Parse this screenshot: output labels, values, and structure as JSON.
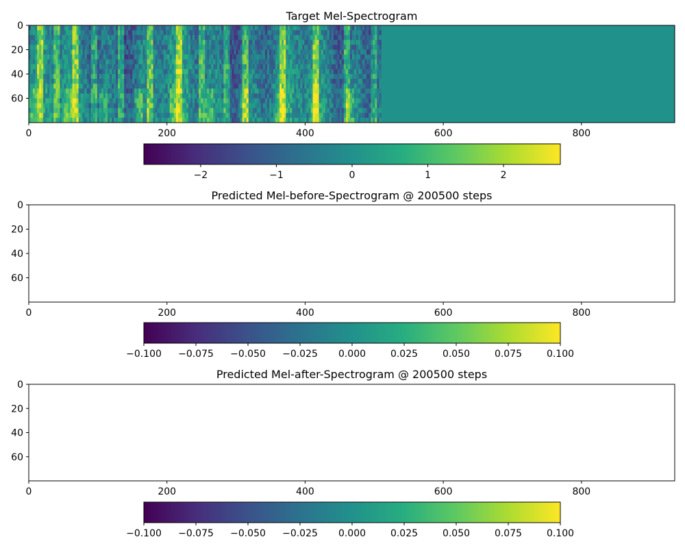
{
  "chart_data": [
    {
      "type": "heatmap",
      "title": "Target Mel-Spectrogram",
      "xlabel": "",
      "ylabel": "",
      "xlim": [
        0,
        935
      ],
      "ylim": [
        80,
        0
      ],
      "x_ticks": [
        0,
        200,
        400,
        600,
        800
      ],
      "x_tick_labels": [
        "0",
        "200",
        "400",
        "600",
        "800"
      ],
      "y_ticks": [
        0,
        20,
        40,
        60
      ],
      "y_tick_labels": [
        "0",
        "20",
        "40",
        "60"
      ],
      "content_end_frame": 510,
      "padding_value": 0.0,
      "colormap": "viridis",
      "colorbar": {
        "orientation": "horizontal",
        "range": [
          -2.75,
          2.75
        ],
        "ticks": [
          -2,
          -1,
          0,
          1,
          2
        ],
        "tick_labels": [
          "−2",
          "−1",
          "0",
          "1",
          "2"
        ]
      }
    },
    {
      "type": "heatmap",
      "title": "Predicted Mel-before-Spectrogram @ 200500 steps",
      "xlabel": "",
      "ylabel": "",
      "xlim": [
        0,
        935
      ],
      "ylim": [
        80,
        0
      ],
      "x_ticks": [
        0,
        200,
        400,
        600,
        800
      ],
      "x_tick_labels": [
        "0",
        "200",
        "400",
        "600",
        "800"
      ],
      "y_ticks": [
        0,
        20,
        40,
        60
      ],
      "y_tick_labels": [
        "0",
        "20",
        "40",
        "60"
      ],
      "fill": "#ffffff",
      "colormap": "viridis",
      "colorbar": {
        "orientation": "horizontal",
        "range": [
          -0.1,
          0.1
        ],
        "ticks": [
          -0.1,
          -0.075,
          -0.05,
          -0.025,
          0,
          0.025,
          0.05,
          0.075,
          0.1
        ],
        "tick_labels": [
          "−0.100",
          "−0.075",
          "−0.050",
          "−0.025",
          "0.000",
          "0.025",
          "0.050",
          "0.075",
          "0.100"
        ]
      }
    },
    {
      "type": "heatmap",
      "title": "Predicted Mel-after-Spectrogram @ 200500 steps",
      "xlabel": "",
      "ylabel": "",
      "xlim": [
        0,
        935
      ],
      "ylim": [
        80,
        0
      ],
      "x_ticks": [
        0,
        200,
        400,
        600,
        800
      ],
      "x_tick_labels": [
        "0",
        "200",
        "400",
        "600",
        "800"
      ],
      "y_ticks": [
        0,
        20,
        40,
        60
      ],
      "y_tick_labels": [
        "0",
        "20",
        "40",
        "60"
      ],
      "fill": "#ffffff",
      "colormap": "viridis",
      "colorbar": {
        "orientation": "horizontal",
        "range": [
          -0.1,
          0.1
        ],
        "ticks": [
          -0.1,
          -0.075,
          -0.05,
          -0.025,
          0,
          0.025,
          0.05,
          0.075,
          0.1
        ],
        "tick_labels": [
          "−0.100",
          "−0.075",
          "−0.050",
          "−0.025",
          "0.000",
          "0.025",
          "0.050",
          "0.075",
          "0.100"
        ]
      }
    }
  ]
}
